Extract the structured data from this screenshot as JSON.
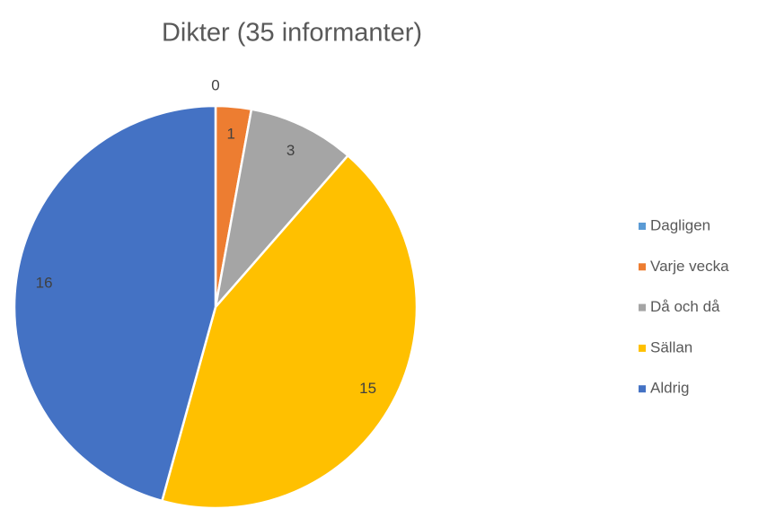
{
  "chart_data": {
    "type": "pie",
    "title": "Dikter (35 informanter)",
    "categories": [
      "Dagligen",
      "Varje vecka",
      "Då och då",
      "Sällan",
      "Aldrig"
    ],
    "values": [
      0,
      1,
      3,
      15,
      16
    ],
    "colors": [
      "#5b9bd5",
      "#ed7d31",
      "#a5a5a5",
      "#ffc000",
      "#4472c4"
    ],
    "legend": "right"
  }
}
